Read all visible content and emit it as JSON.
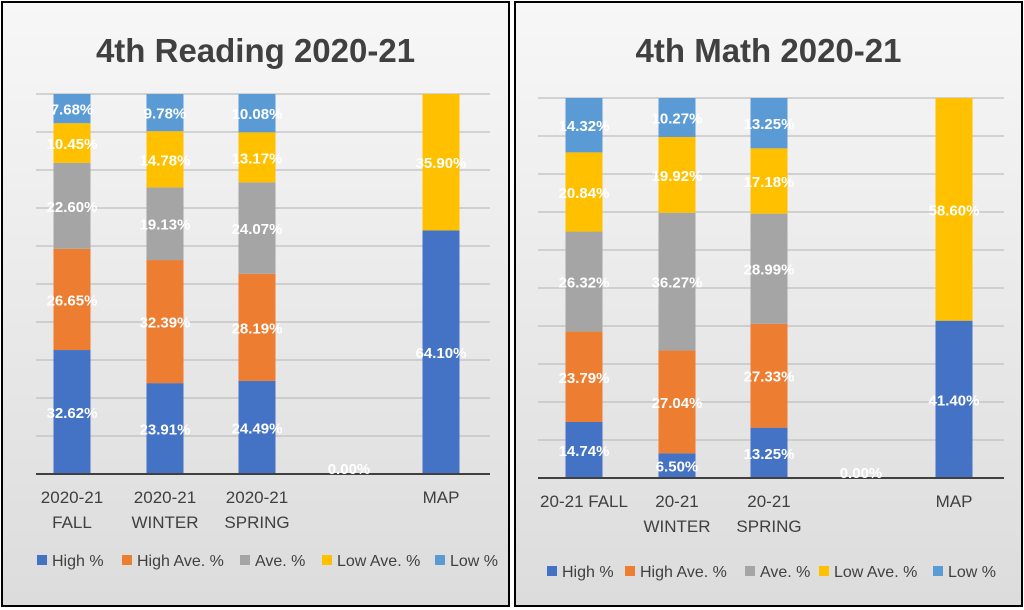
{
  "colors": {
    "series": [
      "#4472C4",
      "#ED7D31",
      "#A5A5A5",
      "#FFC000",
      "#5B9BD5"
    ],
    "grid": "#bfbfbf",
    "axis": "#404040",
    "text": "#404040",
    "data_label": "#ffffff",
    "data_label_zero": "#ffffff",
    "panel_bg_top": "#f7f7f7",
    "panel_bg_bottom": "#dcdcdc"
  },
  "chart_data": [
    {
      "type": "bar",
      "stacked": true,
      "title": "4th Reading 2020-21",
      "categories": [
        [
          "2020-21",
          "FALL"
        ],
        [
          "2020-21",
          "WINTER"
        ],
        [
          "2020-21",
          "SPRING"
        ],
        [
          ""
        ],
        [
          "MAP"
        ]
      ],
      "series": [
        {
          "name": "High %",
          "values": [
            32.62,
            23.91,
            24.49,
            0,
            64.1
          ],
          "labels": [
            "32.62%",
            "23.91%",
            "24.49%",
            "0.00%",
            "64.10%"
          ]
        },
        {
          "name": "High Ave. %",
          "values": [
            26.65,
            32.39,
            28.19,
            null,
            null
          ],
          "labels": [
            "26.65%",
            "32.39%",
            "28.19%",
            null,
            null
          ]
        },
        {
          "name": "Ave. %",
          "values": [
            22.6,
            19.13,
            24.07,
            null,
            null
          ],
          "labels": [
            "22.60%",
            "19.13%",
            "24.07%",
            null,
            null
          ]
        },
        {
          "name": "Low Ave. %",
          "values": [
            10.45,
            14.78,
            13.17,
            null,
            35.9
          ],
          "labels": [
            "10.45%",
            "14.78%",
            "13.17%",
            null,
            "35.90%"
          ]
        },
        {
          "name": "Low %",
          "values": [
            7.68,
            9.78,
            10.08,
            null,
            null
          ],
          "labels": [
            "7.68%",
            "9.78%",
            "10.08%",
            null,
            null
          ]
        }
      ],
      "ylim": [
        0,
        100
      ],
      "grid": true,
      "legend": "bottom"
    },
    {
      "type": "bar",
      "stacked": true,
      "title": "4th Math 2020-21",
      "categories": [
        [
          "20-21 FALL"
        ],
        [
          "20-21",
          "WINTER"
        ],
        [
          "20-21",
          "SPRING"
        ],
        [
          ""
        ],
        [
          "MAP"
        ]
      ],
      "series": [
        {
          "name": "High %",
          "values": [
            14.74,
            6.5,
            13.25,
            0,
            41.4
          ],
          "labels": [
            "14.74%",
            "6.50%",
            "13.25%",
            "0.00%",
            "41.40%"
          ]
        },
        {
          "name": "High Ave. %",
          "values": [
            23.79,
            27.04,
            27.33,
            null,
            null
          ],
          "labels": [
            "23.79%",
            "27.04%",
            "27.33%",
            null,
            null
          ]
        },
        {
          "name": "Ave. %",
          "values": [
            26.32,
            36.27,
            28.99,
            null,
            null
          ],
          "labels": [
            "26.32%",
            "36.27%",
            "28.99%",
            null,
            null
          ]
        },
        {
          "name": "Low Ave. %",
          "values": [
            20.84,
            19.92,
            17.18,
            null,
            58.6
          ],
          "labels": [
            "20.84%",
            "19.92%",
            "17.18%",
            null,
            "58.60%"
          ]
        },
        {
          "name": "Low %",
          "values": [
            14.32,
            10.27,
            13.25,
            null,
            null
          ],
          "labels": [
            "14.32%",
            "10.27%",
            "13.25%",
            null,
            null
          ]
        }
      ],
      "ylim": [
        0,
        100
      ],
      "grid": true,
      "legend": "bottom"
    }
  ]
}
